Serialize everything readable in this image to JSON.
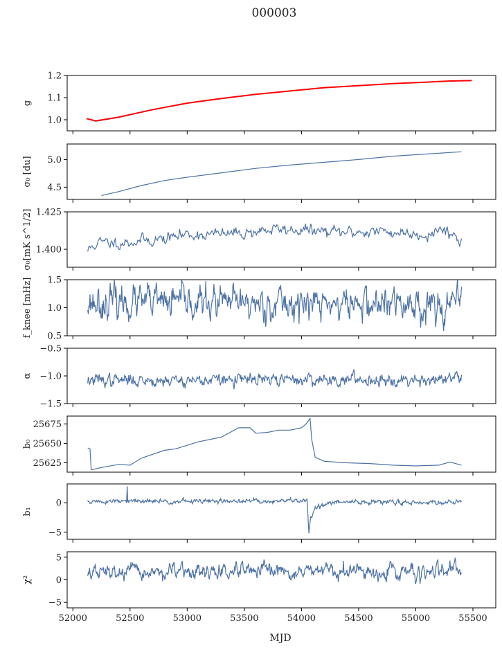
{
  "figure": {
    "title": "000003",
    "xlabel": "MJD",
    "x_ticks": [
      "52000",
      "52500",
      "53000",
      "53500",
      "54000",
      "54500",
      "55000",
      "55500"
    ]
  },
  "chart_data": [
    {
      "type": "line",
      "ylabel": "g",
      "xlim": [
        51950,
        55700
      ],
      "ylim": [
        0.95,
        1.2
      ],
      "yticks": [
        {
          "v": 1.0,
          "label": "1.0"
        },
        {
          "v": 1.1,
          "label": "1.1"
        },
        {
          "v": 1.2,
          "label": "1.2"
        }
      ],
      "series": [
        {
          "kind": "trend",
          "color": "#4c72a6",
          "x": [
            52130,
            52200,
            52400,
            52700,
            53000,
            53300,
            53600,
            53900,
            54200,
            54500,
            54800,
            55100,
            55300,
            55400
          ],
          "y": [
            1.005,
            0.993,
            1.01,
            1.045,
            1.075,
            1.095,
            1.115,
            1.13,
            1.145,
            1.155,
            1.163,
            1.17,
            1.174,
            1.176
          ]
        },
        {
          "kind": "fit",
          "color": "#ff0000",
          "x": [
            52120,
            52200,
            52400,
            52700,
            53000,
            53300,
            53600,
            53900,
            54200,
            54500,
            54800,
            55100,
            55300,
            55490
          ],
          "y": [
            1.005,
            0.995,
            1.012,
            1.046,
            1.075,
            1.096,
            1.115,
            1.13,
            1.145,
            1.154,
            1.163,
            1.17,
            1.175,
            1.177
          ]
        }
      ]
    },
    {
      "type": "line",
      "ylabel": "σ₀ [du]",
      "xlim": [
        51950,
        55700
      ],
      "ylim": [
        4.28,
        5.28
      ],
      "yticks": [
        {
          "v": 4.5,
          "label": "4.5"
        },
        {
          "v": 5.0,
          "label": "5.0"
        }
      ],
      "series": [
        {
          "kind": "trend",
          "color": "#4c72a6",
          "x": [
            52250,
            52400,
            52600,
            52800,
            53000,
            53300,
            53600,
            53900,
            54200,
            54500,
            54800,
            55100,
            55400
          ],
          "y": [
            4.35,
            4.42,
            4.53,
            4.62,
            4.68,
            4.76,
            4.84,
            4.9,
            4.95,
            5.0,
            5.06,
            5.1,
            5.14
          ]
        }
      ]
    },
    {
      "type": "line",
      "ylabel": "σ₀[mK s^1/2]",
      "xlim": [
        51950,
        55700
      ],
      "ylim": [
        1.388,
        1.425
      ],
      "yticks": [
        {
          "v": 1.4,
          "label": "1.400"
        },
        {
          "v": 1.425,
          "label": "1.425"
        }
      ],
      "series": [
        {
          "kind": "noisy",
          "color": "#4c72a6",
          "x0": 52130,
          "x1": 55400,
          "n": 420,
          "seed": 11,
          "noise": 0.0022,
          "x": [
            52130,
            52200,
            52500,
            52800,
            53000,
            53300,
            53500,
            53700,
            54000,
            54300,
            54600,
            54900,
            55100,
            55250,
            55320,
            55400
          ],
          "y": [
            1.399,
            1.404,
            1.405,
            1.407,
            1.41,
            1.41,
            1.411,
            1.413,
            1.413,
            1.411,
            1.412,
            1.411,
            1.41,
            1.414,
            1.41,
            1.405
          ]
        }
      ]
    },
    {
      "type": "line",
      "ylabel": "f_knee [mHz]",
      "xlim": [
        51950,
        55700
      ],
      "ylim": [
        0.5,
        1.5
      ],
      "yticks": [
        {
          "v": 0.5,
          "label": "0.5"
        },
        {
          "v": 1.0,
          "label": "1.0"
        },
        {
          "v": 1.5,
          "label": "1.5"
        }
      ],
      "series": [
        {
          "kind": "noisy",
          "color": "#4c72a6",
          "x0": 52130,
          "x1": 55400,
          "n": 650,
          "seed": 23,
          "noise": 0.16,
          "x": [
            52130,
            55400
          ],
          "y": [
            1.1,
            1.05
          ]
        }
      ]
    },
    {
      "type": "line",
      "ylabel": "α",
      "xlim": [
        51950,
        55700
      ],
      "ylim": [
        -1.5,
        -0.5
      ],
      "yticks": [
        {
          "v": -1.5,
          "label": "−1.5"
        },
        {
          "v": -1.0,
          "label": "−1.0"
        },
        {
          "v": -0.5,
          "label": "−0.5"
        }
      ],
      "series": [
        {
          "kind": "noisy",
          "color": "#4c72a6",
          "x0": 52130,
          "x1": 55400,
          "n": 650,
          "seed": 37,
          "noise": 0.06,
          "x": [
            52130,
            55400
          ],
          "y": [
            -1.08,
            -1.06
          ]
        }
      ]
    },
    {
      "type": "line",
      "ylabel": "b₀",
      "xlim": [
        51950,
        55700
      ],
      "ylim": [
        25613,
        25685
      ],
      "yticks": [
        {
          "v": 25625,
          "label": "25625"
        },
        {
          "v": 25650,
          "label": "25650"
        },
        {
          "v": 25675,
          "label": "25675"
        }
      ],
      "series": [
        {
          "kind": "trend",
          "color": "#4c72a6",
          "x": [
            52130,
            52150,
            52160,
            52250,
            52400,
            52500,
            52600,
            52800,
            52900,
            53100,
            53300,
            53450,
            53550,
            53600,
            53700,
            53800,
            53900,
            54000,
            54040,
            54075,
            54090,
            54120,
            54200,
            54400,
            54600,
            54800,
            55000,
            55200,
            55300,
            55400
          ],
          "y": [
            25644,
            25643,
            25616,
            25619,
            25623,
            25622,
            25631,
            25641,
            25643,
            25652,
            25658,
            25670,
            25670,
            25663,
            25664,
            25667,
            25667,
            25670,
            25675,
            25682,
            25655,
            25632,
            25627,
            25625,
            25624,
            25622,
            25621,
            25622,
            25626,
            25622
          ]
        }
      ]
    },
    {
      "type": "line",
      "ylabel": "b₁",
      "xlim": [
        51950,
        55700
      ],
      "ylim": [
        -6.2,
        3.2
      ],
      "yticks": [
        {
          "v": -5,
          "label": "−5"
        },
        {
          "v": 0,
          "label": "0"
        }
      ],
      "series": [
        {
          "kind": "noisy",
          "color": "#4c72a6",
          "x0": 52130,
          "x1": 55400,
          "n": 650,
          "seed": 51,
          "noise": 0.22,
          "x": [
            52130,
            54000,
            54050,
            54065,
            54080,
            54120,
            54300,
            55400
          ],
          "y": [
            0.2,
            0.3,
            0.6,
            -5.2,
            -2.5,
            -0.8,
            0.1,
            0.1
          ]
        },
        {
          "kind": "spike",
          "color": "#4c72a6",
          "x": [
            52470,
            52475,
            52480
          ],
          "y": [
            0.2,
            2.8,
            0.2
          ]
        }
      ]
    },
    {
      "type": "line",
      "ylabel": "χ²",
      "xlim": [
        51950,
        55700
      ],
      "ylim": [
        -6.2,
        6.2
      ],
      "yticks": [
        {
          "v": -5,
          "label": "−5"
        },
        {
          "v": 0,
          "label": "0"
        },
        {
          "v": 5,
          "label": "5"
        }
      ],
      "series": [
        {
          "kind": "noisy",
          "color": "#4c72a6",
          "x0": 52130,
          "x1": 55400,
          "n": 650,
          "seed": 67,
          "noise": 0.9,
          "x": [
            52130,
            55400
          ],
          "y": [
            1.6,
            1.8
          ]
        }
      ]
    }
  ]
}
